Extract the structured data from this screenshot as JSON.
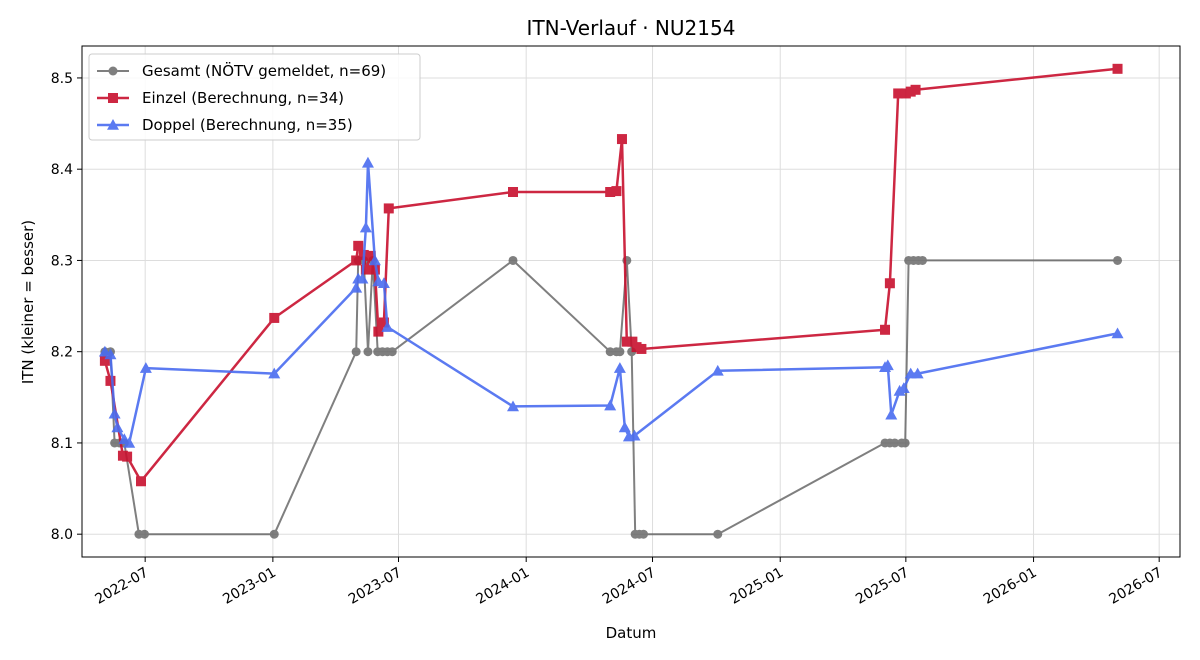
{
  "chart_data": {
    "type": "line",
    "title": "ITN-Verlauf · NU2154",
    "xlabel": "Datum",
    "ylabel": "ITN  (kleiner = besser)",
    "xlim": [
      "2022-04-01",
      "2026-07-31"
    ],
    "ylim": [
      7.975,
      8.535
    ],
    "x_ticks": [
      "2022-07",
      "2023-01",
      "2023-07",
      "2024-01",
      "2024-07",
      "2025-01",
      "2025-07",
      "2026-01",
      "2026-07"
    ],
    "y_ticks": [
      8.0,
      8.1,
      8.2,
      8.3,
      8.4,
      8.5
    ],
    "grid": true,
    "legend_position": "top-left",
    "series": [
      {
        "name": "Gesamt (NÖTV gemeldet, n=69)",
        "color": "#555555",
        "marker": "circle",
        "points": [
          [
            "2022-05-04",
            8.2
          ],
          [
            "2022-05-12",
            8.2
          ],
          [
            "2022-05-18",
            8.1
          ],
          [
            "2022-05-25",
            8.1
          ],
          [
            "2022-06-01",
            8.1
          ],
          [
            "2022-06-22",
            8.0
          ],
          [
            "2022-06-30",
            8.0
          ],
          [
            "2023-01-03",
            8.0
          ],
          [
            "2023-05-01",
            8.2
          ],
          [
            "2023-05-04",
            8.3
          ],
          [
            "2023-05-12",
            8.3
          ],
          [
            "2023-05-18",
            8.2
          ],
          [
            "2023-05-25",
            8.3
          ],
          [
            "2023-06-01",
            8.2
          ],
          [
            "2023-06-08",
            8.2
          ],
          [
            "2023-06-15",
            8.2
          ],
          [
            "2023-06-22",
            8.2
          ],
          [
            "2023-12-13",
            8.3
          ],
          [
            "2024-05-01",
            8.2
          ],
          [
            "2024-05-10",
            8.2
          ],
          [
            "2024-05-15",
            8.2
          ],
          [
            "2024-05-25",
            8.3
          ],
          [
            "2024-06-01",
            8.2
          ],
          [
            "2024-06-06",
            8.0
          ],
          [
            "2024-06-12",
            8.0
          ],
          [
            "2024-06-18",
            8.0
          ],
          [
            "2024-10-03",
            8.0
          ],
          [
            "2025-06-01",
            8.1
          ],
          [
            "2025-06-08",
            8.1
          ],
          [
            "2025-06-15",
            8.1
          ],
          [
            "2025-06-25",
            8.1
          ],
          [
            "2025-06-30",
            8.1
          ],
          [
            "2025-07-05",
            8.3
          ],
          [
            "2025-07-12",
            8.3
          ],
          [
            "2025-07-19",
            8.3
          ],
          [
            "2025-07-25",
            8.3
          ],
          [
            "2026-05-02",
            8.3
          ]
        ]
      },
      {
        "name": "Einzel (Berechnung, n=34)",
        "color": "#c8102e",
        "marker": "square",
        "points": [
          [
            "2022-05-04",
            8.19
          ],
          [
            "2022-05-12",
            8.168
          ],
          [
            "2022-05-30",
            8.086
          ],
          [
            "2022-06-05",
            8.085
          ],
          [
            "2022-06-25",
            8.058
          ],
          [
            "2023-01-03",
            8.237
          ],
          [
            "2023-05-01",
            8.3
          ],
          [
            "2023-05-04",
            8.316
          ],
          [
            "2023-05-12",
            8.306
          ],
          [
            "2023-05-15",
            8.29
          ],
          [
            "2023-05-22",
            8.305
          ],
          [
            "2023-05-28",
            8.29
          ],
          [
            "2023-06-02",
            8.222
          ],
          [
            "2023-06-10",
            8.232
          ],
          [
            "2023-06-17",
            8.357
          ],
          [
            "2023-12-13",
            8.375
          ],
          [
            "2024-05-01",
            8.375
          ],
          [
            "2024-05-10",
            8.376
          ],
          [
            "2024-05-18",
            8.433
          ],
          [
            "2024-05-25",
            8.211
          ],
          [
            "2024-06-02",
            8.211
          ],
          [
            "2024-06-08",
            8.205
          ],
          [
            "2024-06-15",
            8.203
          ],
          [
            "2025-06-01",
            8.224
          ],
          [
            "2025-06-08",
            8.275
          ],
          [
            "2025-06-20",
            8.483
          ],
          [
            "2025-07-01",
            8.483
          ],
          [
            "2025-07-08",
            8.485
          ],
          [
            "2025-07-15",
            8.487
          ],
          [
            "2026-05-02",
            8.51
          ]
        ]
      },
      {
        "name": "Doppel (Berechnung, n=35)",
        "color": "#4a6cf0",
        "marker": "triangle",
        "points": [
          [
            "2022-05-04",
            8.2
          ],
          [
            "2022-05-12",
            8.197
          ],
          [
            "2022-05-18",
            8.132
          ],
          [
            "2022-05-22",
            8.117
          ],
          [
            "2022-06-01",
            8.104
          ],
          [
            "2022-06-08",
            8.1
          ],
          [
            "2022-07-02",
            8.182
          ],
          [
            "2023-01-03",
            8.176
          ],
          [
            "2023-05-01",
            8.27
          ],
          [
            "2023-05-04",
            8.28
          ],
          [
            "2023-05-10",
            8.28
          ],
          [
            "2023-05-15",
            8.336
          ],
          [
            "2023-05-18",
            8.407
          ],
          [
            "2023-05-28",
            8.3
          ],
          [
            "2023-06-02",
            8.277
          ],
          [
            "2023-06-10",
            8.275
          ],
          [
            "2023-06-15",
            8.227
          ],
          [
            "2023-12-13",
            8.14
          ],
          [
            "2024-05-01",
            8.141
          ],
          [
            "2024-05-15",
            8.182
          ],
          [
            "2024-05-22",
            8.117
          ],
          [
            "2024-05-28",
            8.107
          ],
          [
            "2024-06-05",
            8.108
          ],
          [
            "2024-10-03",
            8.179
          ],
          [
            "2025-06-01",
            8.183
          ],
          [
            "2025-06-05",
            8.185
          ],
          [
            "2025-06-10",
            8.131
          ],
          [
            "2025-06-22",
            8.157
          ],
          [
            "2025-06-28",
            8.16
          ],
          [
            "2025-07-08",
            8.176
          ],
          [
            "2025-07-18",
            8.176
          ],
          [
            "2026-05-02",
            8.22
          ]
        ]
      }
    ]
  }
}
